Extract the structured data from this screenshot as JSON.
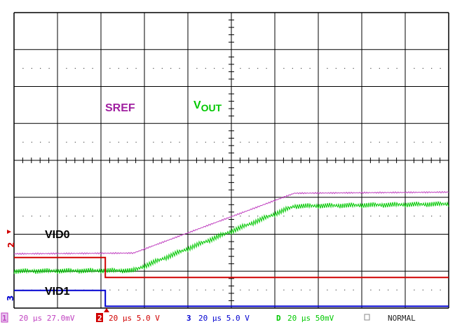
{
  "chart_data": {
    "type": "line",
    "title": "",
    "x": {
      "divisions": 10,
      "units_per_div_us": 20
    },
    "y": {
      "divisions": 8
    },
    "grid": true,
    "series": [
      {
        "name": "SREF",
        "label": "SREF",
        "color": "#c040c0",
        "points": [
          [
            0,
            1.47
          ],
          [
            2.75,
            1.49
          ],
          [
            6.45,
            3.11
          ],
          [
            10,
            3.14
          ]
        ],
        "ripple": 0.02
      },
      {
        "name": "VOUT",
        "label_main": "V",
        "label_sub": "OUT",
        "color": "#00c800",
        "points": [
          [
            0,
            1.0
          ],
          [
            2.75,
            1.02
          ],
          [
            6.45,
            2.76
          ],
          [
            10,
            2.82
          ]
        ],
        "ripple": 0.15
      },
      {
        "name": "VID0",
        "label": "VID0",
        "color": "#d00000",
        "points": [
          [
            0,
            1.37
          ],
          [
            2.1,
            1.37
          ],
          [
            2.1,
            0.83
          ],
          [
            10,
            0.83
          ]
        ],
        "ripple": 0.015
      },
      {
        "name": "VID1",
        "label": "VID1",
        "color": "#0000d0",
        "points": [
          [
            0,
            0.48
          ],
          [
            2.1,
            0.48
          ],
          [
            2.1,
            0.05
          ],
          [
            10,
            0.05
          ]
        ],
        "ripple": 0.015
      }
    ]
  },
  "status_bar": {
    "ch1": {
      "num": "1",
      "text": "20 μs 27.0mV",
      "color": "#c040c0"
    },
    "ch2": {
      "num": "2",
      "text": "20 μs 5.0 V",
      "color": "#d00000"
    },
    "ch3": {
      "num": "3",
      "text": "20 μs 5.0 V",
      "color": "#0000d0"
    },
    "ch4": {
      "num": "D",
      "text": "20 μs 50mV",
      "color": "#00c800"
    },
    "mode": "NORMAL"
  },
  "markers": {
    "ch2": "2",
    "ch3": "3"
  }
}
